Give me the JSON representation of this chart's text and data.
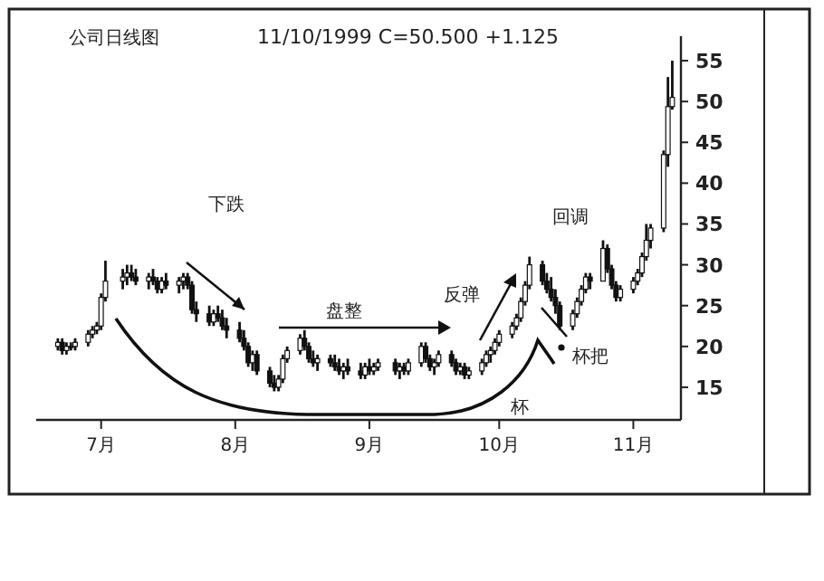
{
  "chart_data": {
    "type": "candlestick",
    "title": "公司日线图",
    "subtitle": "11/10/1999 C=50.500 +1.125",
    "color": "#111111",
    "xlim": [
      "1999-06-16",
      "1999-11-12"
    ],
    "ylim": [
      11,
      58
    ],
    "yticks": [
      15,
      20,
      25,
      30,
      35,
      40,
      45,
      50,
      55
    ],
    "xticks": [
      {
        "value": "1999-07-01",
        "label": "7月"
      },
      {
        "value": "1999-08-01",
        "label": "8月"
      },
      {
        "value": "1999-09-01",
        "label": "9月"
      },
      {
        "value": "1999-10-01",
        "label": "10月"
      },
      {
        "value": "1999-11-01",
        "label": "11月"
      }
    ],
    "annotations": [
      "下跌",
      "盘整",
      "反弹",
      "回调",
      "杯把",
      "杯"
    ],
    "x": [
      "1999-06-21",
      "1999-06-22",
      "1999-06-23",
      "1999-06-24",
      "1999-06-25",
      "1999-06-28",
      "1999-06-29",
      "1999-06-30",
      "1999-07-01",
      "1999-07-02",
      "1999-07-06",
      "1999-07-07",
      "1999-07-08",
      "1999-07-09",
      "1999-07-12",
      "1999-07-13",
      "1999-07-14",
      "1999-07-15",
      "1999-07-16",
      "1999-07-19",
      "1999-07-20",
      "1999-07-21",
      "1999-07-22",
      "1999-07-23",
      "1999-07-26",
      "1999-07-27",
      "1999-07-28",
      "1999-07-29",
      "1999-07-30",
      "1999-08-02",
      "1999-08-03",
      "1999-08-04",
      "1999-08-05",
      "1999-08-06",
      "1999-08-09",
      "1999-08-10",
      "1999-08-11",
      "1999-08-12",
      "1999-08-13",
      "1999-08-16",
      "1999-08-17",
      "1999-08-18",
      "1999-08-19",
      "1999-08-20",
      "1999-08-23",
      "1999-08-24",
      "1999-08-25",
      "1999-08-26",
      "1999-08-27",
      "1999-08-30",
      "1999-08-31",
      "1999-09-01",
      "1999-09-02",
      "1999-09-03",
      "1999-09-07",
      "1999-09-08",
      "1999-09-09",
      "1999-09-10",
      "1999-09-13",
      "1999-09-14",
      "1999-09-15",
      "1999-09-16",
      "1999-09-17",
      "1999-09-20",
      "1999-09-21",
      "1999-09-22",
      "1999-09-23",
      "1999-09-24",
      "1999-09-27",
      "1999-09-28",
      "1999-09-29",
      "1999-09-30",
      "1999-10-01",
      "1999-10-04",
      "1999-10-05",
      "1999-10-06",
      "1999-10-07",
      "1999-10-08",
      "1999-10-11",
      "1999-10-12",
      "1999-10-13",
      "1999-10-14",
      "1999-10-15",
      "1999-10-18",
      "1999-10-19",
      "1999-10-20",
      "1999-10-21",
      "1999-10-22",
      "1999-10-25",
      "1999-10-26",
      "1999-10-27",
      "1999-10-28",
      "1999-10-29",
      "1999-11-01",
      "1999-11-02",
      "1999-11-03",
      "1999-11-04",
      "1999-11-05",
      "1999-11-08",
      "1999-11-09",
      "1999-11-10"
    ],
    "ohlc": [
      [
        20,
        21,
        19.5,
        20.5
      ],
      [
        20.5,
        21,
        19,
        19.5
      ],
      [
        19.5,
        20.5,
        19,
        20
      ],
      [
        20,
        20.5,
        19.5,
        20
      ],
      [
        20,
        21,
        19.5,
        20.5
      ],
      [
        20.5,
        22,
        20,
        21.5
      ],
      [
        21.5,
        22.5,
        21,
        22
      ],
      [
        22,
        23,
        21.5,
        22.5
      ],
      [
        22.5,
        26.5,
        22,
        26
      ],
      [
        26,
        30.5,
        25.5,
        28
      ],
      [
        28,
        29.5,
        27,
        28.5
      ],
      [
        28.5,
        30,
        27.5,
        29
      ],
      [
        29,
        30,
        28,
        28.5
      ],
      [
        28.5,
        29.5,
        27.5,
        28
      ],
      [
        28,
        29,
        27,
        28.5
      ],
      [
        28.5,
        29.5,
        27.5,
        28
      ],
      [
        28,
        28.5,
        26.5,
        27
      ],
      [
        27,
        28.5,
        26.5,
        28
      ],
      [
        28,
        29,
        27,
        27.5
      ],
      [
        27.5,
        28.5,
        26.5,
        28
      ],
      [
        28,
        29,
        27,
        28.5
      ],
      [
        28.5,
        29,
        27,
        27.5
      ],
      [
        27.5,
        28,
        24,
        24.5
      ],
      [
        24.5,
        25.5,
        23,
        24
      ],
      [
        24,
        25,
        22.5,
        23
      ],
      [
        23,
        24.5,
        22.5,
        24
      ],
      [
        24,
        25,
        23,
        23.5
      ],
      [
        23.5,
        24.5,
        22,
        22.5
      ],
      [
        22.5,
        23.5,
        21,
        22
      ],
      [
        22,
        23,
        20.5,
        21
      ],
      [
        21,
        22,
        19.5,
        20
      ],
      [
        20,
        20.5,
        17.5,
        18
      ],
      [
        18,
        19.5,
        17,
        19
      ],
      [
        19,
        19.5,
        16.5,
        17
      ],
      [
        17,
        17.5,
        15,
        15.5
      ],
      [
        15.5,
        16.5,
        14.5,
        15
      ],
      [
        15,
        16.5,
        14.5,
        16
      ],
      [
        16,
        19,
        15.5,
        18.5
      ],
      [
        18.5,
        20,
        18,
        19.5
      ],
      [
        19.5,
        21.5,
        19,
        21
      ],
      [
        21,
        22,
        19.5,
        20
      ],
      [
        20,
        20.5,
        18,
        18.5
      ],
      [
        18.5,
        19.5,
        17.5,
        18
      ],
      [
        18,
        19,
        17,
        18.5
      ],
      [
        18.5,
        19,
        17.5,
        18
      ],
      [
        18,
        19,
        17,
        17.5
      ],
      [
        17.5,
        18.5,
        16.5,
        17
      ],
      [
        17,
        18,
        16,
        17.5
      ],
      [
        17.5,
        18.5,
        16.5,
        17
      ],
      [
        17,
        18,
        16,
        16.5
      ],
      [
        16.5,
        18,
        16,
        17.5
      ],
      [
        17.5,
        18.5,
        16.5,
        17
      ],
      [
        17,
        18,
        16.5,
        17.5
      ],
      [
        17.5,
        18.5,
        17,
        18
      ],
      [
        18,
        18.5,
        16.5,
        17
      ],
      [
        17,
        18,
        16,
        17.5
      ],
      [
        17.5,
        18,
        16.5,
        17
      ],
      [
        17,
        18.5,
        16.5,
        18
      ],
      [
        18,
        20.5,
        17.5,
        20
      ],
      [
        20,
        20.5,
        18,
        18.5
      ],
      [
        18.5,
        19,
        17,
        17.5
      ],
      [
        17.5,
        18.5,
        16.5,
        18
      ],
      [
        18,
        19.5,
        17.5,
        19
      ],
      [
        19,
        19.5,
        17.5,
        18
      ],
      [
        18,
        18.5,
        16.5,
        17
      ],
      [
        17,
        18,
        16.5,
        17.5
      ],
      [
        17.5,
        18,
        16,
        16.5
      ],
      [
        16.5,
        17.5,
        16,
        17
      ],
      [
        17,
        18.5,
        16.5,
        18
      ],
      [
        18,
        19.5,
        17.5,
        19
      ],
      [
        19,
        20,
        18,
        19.5
      ],
      [
        19.5,
        21,
        19,
        20.5
      ],
      [
        20.5,
        22,
        20,
        21.5
      ],
      [
        21.5,
        23,
        21,
        22.5
      ],
      [
        22.5,
        24,
        22,
        23.5
      ],
      [
        23.5,
        26,
        23,
        25.5
      ],
      [
        25.5,
        28,
        25,
        27.5
      ],
      [
        27.5,
        31,
        27,
        30
      ],
      [
        30,
        30.5,
        27.5,
        28
      ],
      [
        28,
        29,
        26.5,
        27
      ],
      [
        27,
        28.5,
        25.5,
        26
      ],
      [
        26,
        27,
        24,
        25
      ],
      [
        25,
        25.5,
        22,
        22.5
      ],
      [
        22.5,
        24.5,
        22,
        24
      ],
      [
        24,
        26,
        23.5,
        25.5
      ],
      [
        25.5,
        27.5,
        25,
        27
      ],
      [
        27,
        29,
        26.5,
        28.5
      ],
      [
        28.5,
        29,
        27,
        28
      ],
      [
        28,
        33,
        28,
        32
      ],
      [
        32,
        32.5,
        29,
        29.5
      ],
      [
        29.5,
        30,
        27,
        27.5
      ],
      [
        27.5,
        28,
        25.5,
        26
      ],
      [
        26,
        27.5,
        25.5,
        27
      ],
      [
        27,
        28.5,
        26.5,
        28
      ],
      [
        28,
        29.5,
        27.5,
        29
      ],
      [
        29,
        31.5,
        28.5,
        31
      ],
      [
        31,
        35,
        30.5,
        33
      ],
      [
        33,
        35,
        32,
        34.5
      ],
      [
        34.5,
        44,
        34,
        43.5
      ],
      [
        43.5,
        53,
        42,
        49.375
      ],
      [
        49.375,
        55,
        49,
        50.5
      ]
    ]
  }
}
